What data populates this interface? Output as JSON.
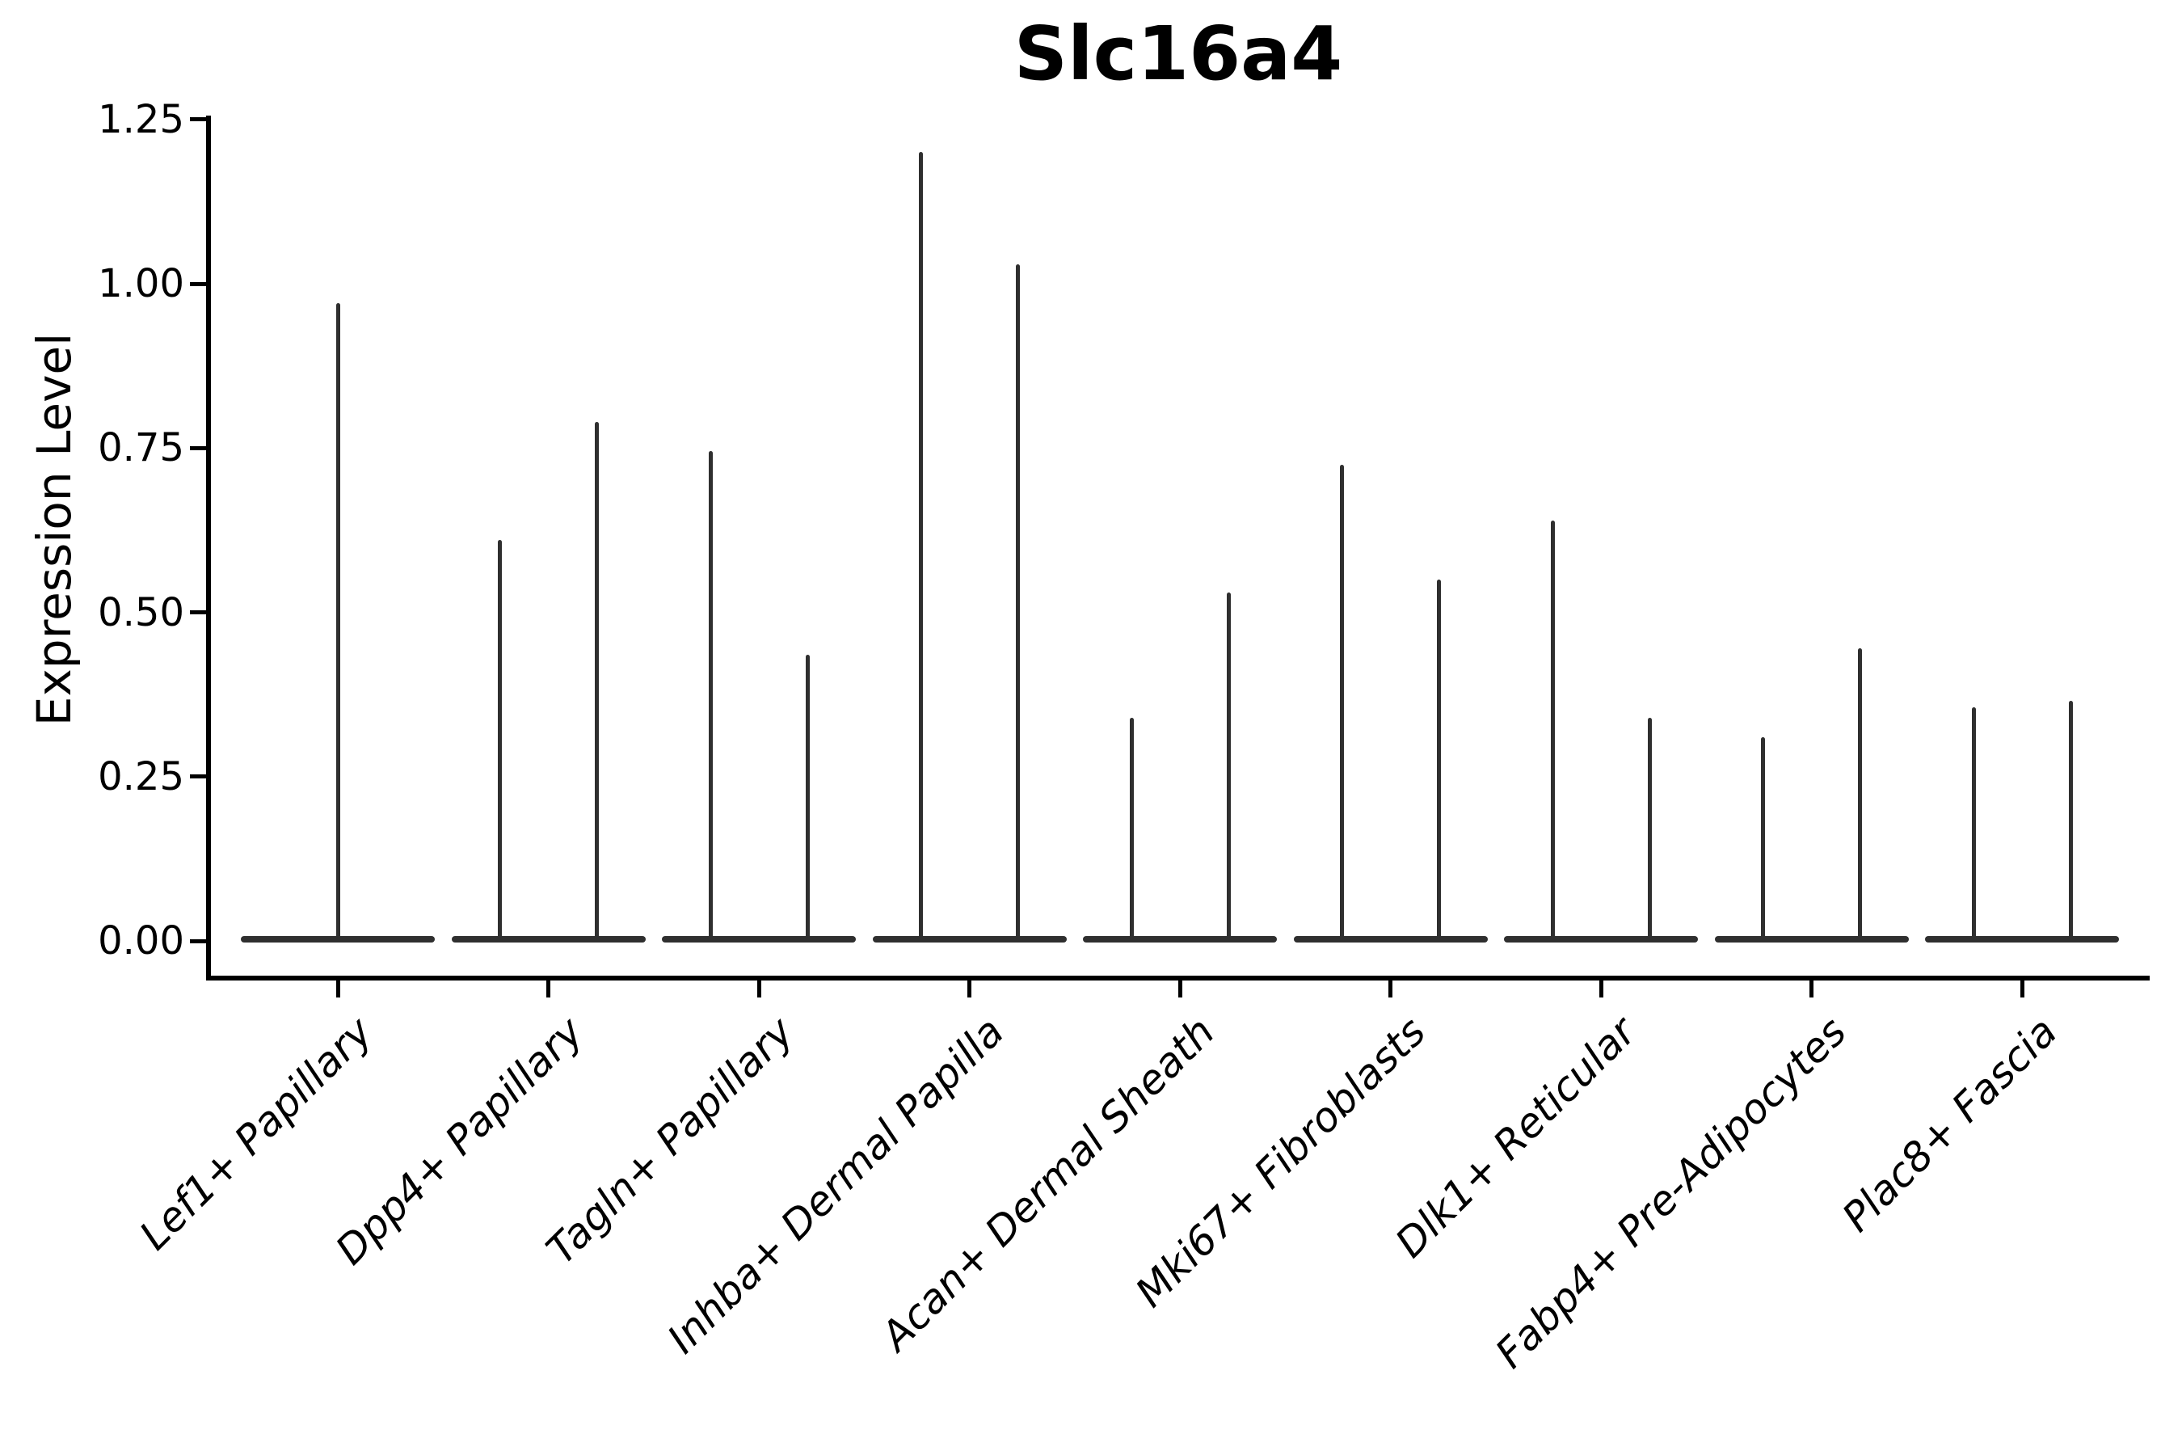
{
  "figure": {
    "title": "Slc16a4"
  },
  "axes": {
    "ylabel": "Expression Level",
    "ytick_labels": [
      "0.00",
      "0.25",
      "0.50",
      "0.75",
      "1.00",
      "1.25"
    ],
    "xtick_labels": [
      "Lef1+ Papillary",
      "Dpp4+ Papillary",
      "Tagln+ Papillary",
      "Inhba+ Dermal Papilla",
      "Acan+ Dermal Sheath",
      "Mki67+ Fibroblasts",
      "Dlk1+ Reticular",
      "Fabp4+ Pre-Adipocytes",
      "Plac8+ Fascia"
    ]
  },
  "chart_data": {
    "type": "violin",
    "title": "Slc16a4",
    "xlabel": "",
    "ylabel": "Expression Level",
    "ylim": [
      0,
      1.28
    ],
    "yticks": [
      0,
      0.25,
      0.5,
      0.75,
      1.0,
      1.25
    ],
    "grid": false,
    "legend": null,
    "description": "Violin plot of Slc16a4 expression per fibroblast cell-type cluster. Expression is sparse: each violin collapses to a wide flat base at 0 with thin density spikes reaching the maximum expression values.",
    "categories": [
      "Lef1+ Papillary",
      "Dpp4+ Papillary",
      "Tagln+ Papillary",
      "Inhba+ Dermal Papilla",
      "Acan+ Dermal Sheath",
      "Mki67+ Fibroblasts",
      "Dlk1+ Reticular",
      "Fabp4+ Pre-Adipocytes",
      "Plac8+ Fascia"
    ],
    "violins": [
      {
        "category": "Lef1+ Papillary",
        "spikes": [
          {
            "position": "center",
            "max": 0.97
          }
        ]
      },
      {
        "category": "Dpp4+ Papillary",
        "spikes": [
          {
            "position": "left",
            "max": 0.61
          },
          {
            "position": "right",
            "max": 0.79
          }
        ]
      },
      {
        "category": "Tagln+ Papillary",
        "spikes": [
          {
            "position": "left",
            "max": 0.745
          },
          {
            "position": "right",
            "max": 0.435
          }
        ]
      },
      {
        "category": "Inhba+ Dermal Papilla",
        "spikes": [
          {
            "position": "left",
            "max": 1.2
          },
          {
            "position": "right",
            "max": 1.03
          }
        ]
      },
      {
        "category": "Acan+ Dermal Sheath",
        "spikes": [
          {
            "position": "left",
            "max": 0.34
          },
          {
            "position": "right",
            "max": 0.53
          }
        ]
      },
      {
        "category": "Mki67+ Fibroblasts",
        "spikes": [
          {
            "position": "left",
            "max": 0.725
          },
          {
            "position": "right",
            "max": 0.55
          }
        ]
      },
      {
        "category": "Dlk1+ Reticular",
        "spikes": [
          {
            "position": "left",
            "max": 0.64
          },
          {
            "position": "right",
            "max": 0.34
          }
        ]
      },
      {
        "category": "Fabp4+ Pre-Adipocytes",
        "spikes": [
          {
            "position": "left",
            "max": 0.31
          },
          {
            "position": "right",
            "max": 0.445
          }
        ]
      },
      {
        "category": "Plac8+ Fascia",
        "spikes": [
          {
            "position": "left",
            "max": 0.355
          },
          {
            "position": "right",
            "max": 0.365
          }
        ]
      }
    ],
    "colors": {
      "violin": "#2f2f2f",
      "axis": "#000000",
      "text": "#000000",
      "background": "#ffffff"
    }
  }
}
